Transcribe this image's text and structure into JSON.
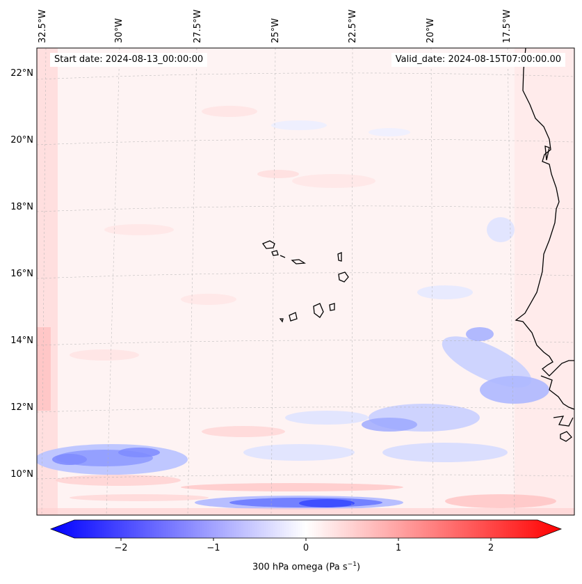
{
  "map": {
    "start_date": "Start date: 2024-08-13_00:00:00",
    "valid_date": "Valid_date: 2024-08-15T07:00:00.00",
    "lon_labels": [
      "32.5°W",
      "30°W",
      "27.5°W",
      "25°W",
      "22.5°W",
      "20°W",
      "17.5°W"
    ],
    "lat_labels": [
      "22°N",
      "20°N",
      "18°N",
      "16°N",
      "14°N",
      "12°N",
      "10°N"
    ],
    "colorbar": {
      "ticks": [
        "−2",
        "−1",
        "0",
        "1",
        "2"
      ],
      "label_main": "300 hPa omega (Pa s",
      "label_sup": "−1",
      "label_end": ")",
      "min": -2.7,
      "max": 2.7,
      "colormap": "bwr",
      "low_color": "#0000ff",
      "mid_color": "#ffffff",
      "high_color": "#ff0000"
    },
    "coastline_color": "#000000",
    "grid_color": "#b0b0b0"
  }
}
